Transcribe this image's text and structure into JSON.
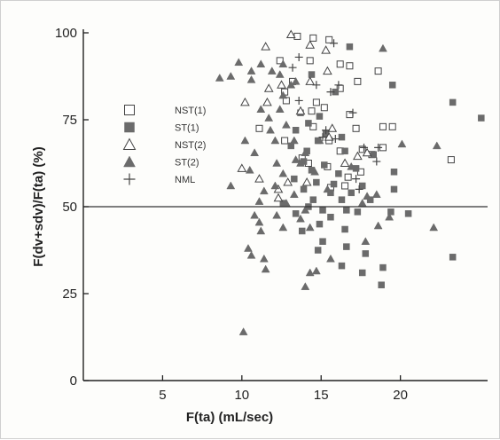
{
  "chart_data": {
    "type": "scatter",
    "xlabel": "F(ta) (mL/sec)",
    "ylabel": "F(dv+sdv)/F(ta) (%)",
    "xlim": [
      0,
      25.5
    ],
    "ylim": [
      0,
      100
    ],
    "x_ticks": [
      5,
      10,
      15,
      20
    ],
    "y_ticks": [
      0,
      25,
      50,
      75,
      100
    ],
    "reference_line_y": 50,
    "grid": false,
    "legend_position": "left-middle",
    "colors": {
      "ink": "#222222",
      "filled": "#6b6b6b",
      "open": "#444444"
    },
    "series": [
      {
        "name": "NST(1)",
        "marker": "open-square",
        "points": [
          [
            13.5,
            99
          ],
          [
            14.5,
            98.5
          ],
          [
            15.5,
            98
          ],
          [
            12.4,
            92
          ],
          [
            14.3,
            92
          ],
          [
            16.2,
            91
          ],
          [
            16.8,
            90.5
          ],
          [
            18.6,
            89
          ],
          [
            13.2,
            86
          ],
          [
            17.3,
            86
          ],
          [
            16.2,
            84
          ],
          [
            12.7,
            83
          ],
          [
            12.8,
            80.5
          ],
          [
            14.7,
            80
          ],
          [
            15.2,
            78.5
          ],
          [
            14.4,
            77.5
          ],
          [
            16.8,
            76.5
          ],
          [
            14.5,
            73
          ],
          [
            17.2,
            72.5
          ],
          [
            18.9,
            73
          ],
          [
            19.5,
            73
          ],
          [
            11.1,
            72.5
          ],
          [
            12.7,
            69
          ],
          [
            15.5,
            69
          ],
          [
            18.9,
            67
          ],
          [
            16.2,
            66
          ],
          [
            17.6,
            66.5
          ],
          [
            13.8,
            64
          ],
          [
            18.2,
            65
          ],
          [
            14.2,
            62.5
          ],
          [
            15.4,
            61.5
          ],
          [
            17.5,
            60
          ],
          [
            16.7,
            58.5
          ],
          [
            16.5,
            56
          ],
          [
            15.6,
            55.5
          ],
          [
            23.2,
            63.5
          ]
        ]
      },
      {
        "name": "ST(1)",
        "marker": "filled-square",
        "points": [
          [
            16.8,
            96
          ],
          [
            14.4,
            88
          ],
          [
            19.5,
            85
          ],
          [
            15.9,
            83
          ],
          [
            23.3,
            80
          ],
          [
            25.1,
            75.5
          ],
          [
            13.7,
            77
          ],
          [
            14.9,
            76
          ],
          [
            14.2,
            74
          ],
          [
            13.4,
            72
          ],
          [
            15.3,
            71
          ],
          [
            16.3,
            70
          ],
          [
            14.8,
            69
          ],
          [
            13.1,
            67.5
          ],
          [
            14.1,
            66
          ],
          [
            16.5,
            66
          ],
          [
            18.3,
            65
          ],
          [
            13.9,
            63
          ],
          [
            15.2,
            62
          ],
          [
            14.4,
            60.5
          ],
          [
            17.2,
            61
          ],
          [
            16.1,
            59.5
          ],
          [
            19.6,
            60
          ],
          [
            13.3,
            58
          ],
          [
            14.7,
            57
          ],
          [
            15.8,
            56.5
          ],
          [
            17.6,
            56
          ],
          [
            13.9,
            55
          ],
          [
            15.6,
            54
          ],
          [
            16.9,
            54
          ],
          [
            19.6,
            55
          ],
          [
            14.5,
            52
          ],
          [
            16.3,
            52
          ],
          [
            18.1,
            52
          ],
          [
            12.6,
            51
          ],
          [
            14.2,
            50
          ],
          [
            15.1,
            49
          ],
          [
            16.6,
            49
          ],
          [
            13.4,
            48
          ],
          [
            15.6,
            47
          ],
          [
            17.3,
            48.5
          ],
          [
            19.4,
            48.5
          ],
          [
            20.5,
            48
          ],
          [
            14.9,
            45
          ],
          [
            13.8,
            43
          ],
          [
            16.5,
            43.5
          ],
          [
            15.1,
            40
          ],
          [
            14.8,
            37.5
          ],
          [
            16.6,
            38.5
          ],
          [
            17.8,
            36.5
          ],
          [
            16.3,
            33
          ],
          [
            17.6,
            31
          ],
          [
            18.9,
            32.5
          ],
          [
            18.8,
            27.5
          ],
          [
            23.3,
            35.5
          ]
        ]
      },
      {
        "name": "NST(2)",
        "marker": "open-triangle",
        "points": [
          [
            11.5,
            96
          ],
          [
            13.1,
            99.5
          ],
          [
            14.3,
            96.5
          ],
          [
            15.3,
            95
          ],
          [
            15.4,
            89
          ],
          [
            14.3,
            86
          ],
          [
            11.7,
            84
          ],
          [
            12.5,
            85
          ],
          [
            11.6,
            80
          ],
          [
            10.2,
            80
          ],
          [
            13.7,
            77.5
          ],
          [
            15.7,
            72.5
          ],
          [
            15.5,
            70
          ],
          [
            17.3,
            64.5
          ],
          [
            16.5,
            62.5
          ],
          [
            17.9,
            65.5
          ],
          [
            10,
            61
          ],
          [
            11.1,
            58
          ],
          [
            12.3,
            55
          ],
          [
            12.9,
            57
          ],
          [
            14.1,
            57
          ],
          [
            12.3,
            52.5
          ]
        ]
      },
      {
        "name": "ST(2)",
        "marker": "filled-triangle",
        "points": [
          [
            18.9,
            95.5
          ],
          [
            9.8,
            91.5
          ],
          [
            11.2,
            91
          ],
          [
            12.6,
            91
          ],
          [
            10.6,
            89
          ],
          [
            11.9,
            89
          ],
          [
            12.4,
            88
          ],
          [
            9.3,
            87.5
          ],
          [
            10.6,
            86.5
          ],
          [
            13.4,
            86
          ],
          [
            8.6,
            87
          ],
          [
            13.1,
            85
          ],
          [
            12.6,
            82
          ],
          [
            11.2,
            78
          ],
          [
            12.4,
            78
          ],
          [
            11.7,
            75.5
          ],
          [
            12.8,
            73.5
          ],
          [
            11.8,
            72
          ],
          [
            10.2,
            69
          ],
          [
            12.1,
            69
          ],
          [
            13.3,
            69
          ],
          [
            14.9,
            69
          ],
          [
            20.1,
            68
          ],
          [
            22.3,
            67.5
          ],
          [
            10.8,
            65.5
          ],
          [
            14,
            65.5
          ],
          [
            13.4,
            63.5
          ],
          [
            12.2,
            62.5
          ],
          [
            13.7,
            62.5
          ],
          [
            16.9,
            61.5
          ],
          [
            10.5,
            60.5
          ],
          [
            12.6,
            59.5
          ],
          [
            14.6,
            60
          ],
          [
            9.3,
            56
          ],
          [
            12.1,
            56
          ],
          [
            15.4,
            55
          ],
          [
            11.4,
            54.5
          ],
          [
            13.3,
            53.5
          ],
          [
            17.9,
            53
          ],
          [
            11.1,
            51.5
          ],
          [
            12.8,
            51
          ],
          [
            17.6,
            51
          ],
          [
            18.5,
            53.5
          ],
          [
            14,
            49
          ],
          [
            10.8,
            47.5
          ],
          [
            12.2,
            47.5
          ],
          [
            13.7,
            46.5
          ],
          [
            19.3,
            47
          ],
          [
            11.1,
            45.5
          ],
          [
            12.6,
            44
          ],
          [
            14.3,
            44
          ],
          [
            18.6,
            44.5
          ],
          [
            22.1,
            44
          ],
          [
            11.2,
            43
          ],
          [
            17.8,
            40
          ],
          [
            10.4,
            38
          ],
          [
            10.6,
            36
          ],
          [
            11.4,
            35
          ],
          [
            15.6,
            35
          ],
          [
            11.5,
            32
          ],
          [
            14.3,
            31
          ],
          [
            14.7,
            31.5
          ],
          [
            14,
            27
          ],
          [
            10.1,
            14
          ]
        ]
      },
      {
        "name": "NML",
        "marker": "plus",
        "points": [
          [
            15.8,
            97
          ],
          [
            13.6,
            93
          ],
          [
            13.2,
            90
          ],
          [
            14.7,
            85
          ],
          [
            16.1,
            85
          ],
          [
            15.6,
            83
          ],
          [
            13.6,
            80.5
          ],
          [
            17,
            77
          ],
          [
            15.3,
            72
          ],
          [
            15.1,
            70
          ],
          [
            15.9,
            69.5
          ],
          [
            17.7,
            67
          ],
          [
            18.6,
            67
          ],
          [
            18.5,
            63
          ],
          [
            17.2,
            58
          ],
          [
            17.4,
            55
          ]
        ]
      }
    ]
  }
}
